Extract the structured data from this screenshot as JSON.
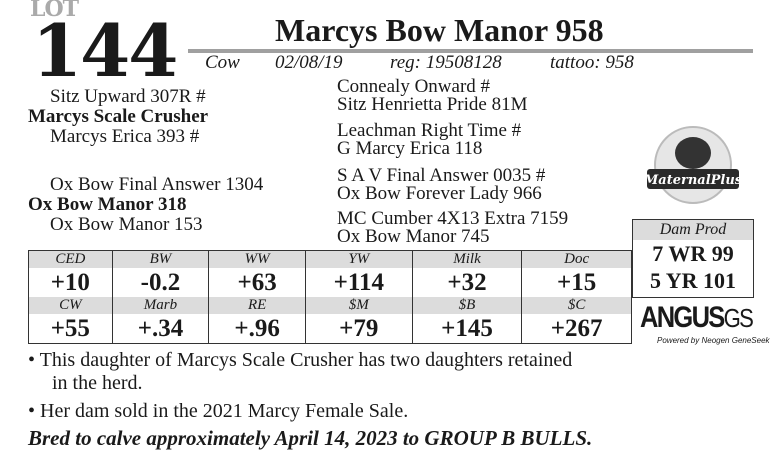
{
  "lot": {
    "label": "LOT",
    "number": "144"
  },
  "animal": {
    "name": "Marcys Bow Manor 958",
    "sex": "Cow",
    "birth_date": "02/08/19",
    "reg": "reg: 19508128",
    "tattoo": "tattoo: 958"
  },
  "pedigree": {
    "sire": "Marcys Scale Crusher",
    "sire_sire": "Sitz Upward 307R #",
    "sire_dam": "Marcys Erica 393  #",
    "dam": "Ox Bow Manor 318",
    "dam_sire": "Ox Bow  Final Answer 1304",
    "dam_dam": "Ox Bow Manor 153",
    "ss_s": "Connealy Onward #",
    "ss_d": "Sitz Henrietta Pride 81M",
    "sd_s": "Leachman Right Time #",
    "sd_d": "G Marcy Erica 118",
    "ds_s": "S A V Final Answer 0035 #",
    "ds_d": "Ox Bow Forever Lady 966",
    "dd_s": "MC Cumber 4X13 Extra 7159",
    "dd_d": "Ox Bow Manor 745"
  },
  "epd": {
    "row1_headers": [
      "CED",
      "BW",
      "WW",
      "YW",
      "Milk",
      "Doc"
    ],
    "row1_values": [
      "+10",
      "-0.2",
      "+63",
      "+114",
      "+32",
      "+15"
    ],
    "row2_headers": [
      "CW",
      "Marb",
      "RE",
      "$M",
      "$B",
      "$C"
    ],
    "row2_values": [
      "+55",
      "+.34",
      "+.96",
      "+79",
      "+145",
      "+267"
    ]
  },
  "dam_prod": {
    "title": "Dam Prod",
    "wr": "7 WR 99",
    "yr": "5 YR 101"
  },
  "logos": {
    "maternal_plus": "MaternalPlus",
    "angus": "ANGUS",
    "gs": "GS",
    "powered": "Powered by Neogen GeneSeek"
  },
  "notes": [
    "• This daughter of Marcys Scale Crusher has two daughters retained",
    "in the herd.",
    "• Her dam sold in the 2021 Marcy Female Sale."
  ],
  "bred": "Bred to calve approximately April 14, 2023 to GROUP B BULLS."
}
